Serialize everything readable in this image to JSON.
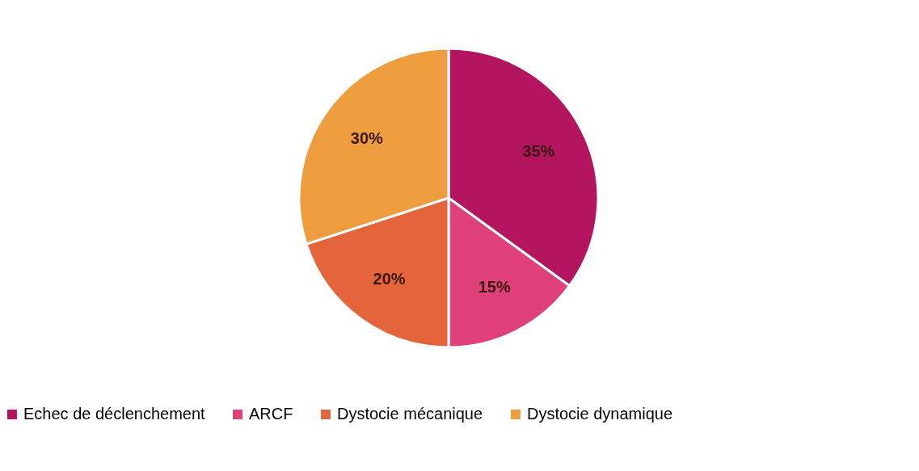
{
  "chart_data": {
    "type": "pie",
    "categories": [
      "Echec de déclenchement",
      "ARCF",
      "Dystocie mécanique",
      "Dystocie dynamique"
    ],
    "values": [
      35,
      15,
      20,
      30
    ],
    "colors": [
      "#b3155f",
      "#e0417a",
      "#e4653c",
      "#ee9d3e"
    ],
    "value_labels": [
      "35%",
      "15%",
      "20%",
      "30%"
    ],
    "legend": "bottom"
  }
}
